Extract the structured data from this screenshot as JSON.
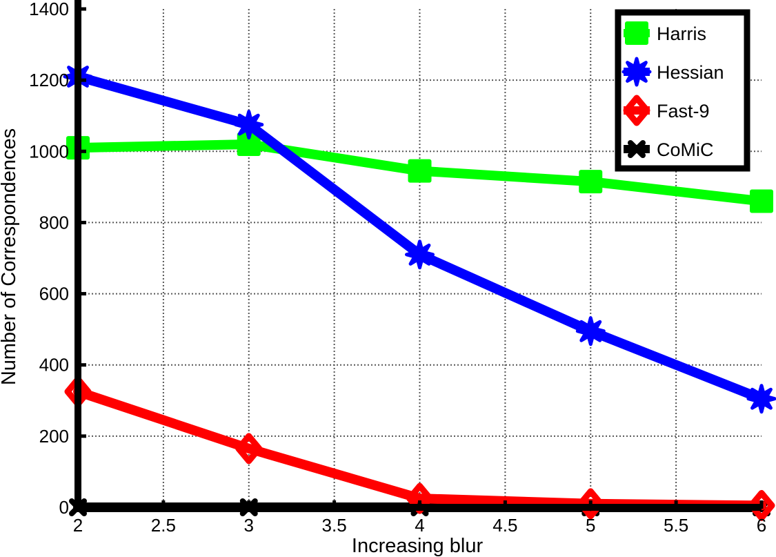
{
  "chart_data": {
    "type": "line",
    "title": "",
    "xlabel": "Increasing blur",
    "ylabel": "Number of Correspondences",
    "x": [
      2,
      3,
      4,
      5,
      6
    ],
    "xlim": [
      2,
      6
    ],
    "ylim": [
      0,
      1400
    ],
    "xticks": [
      "2",
      "2.5",
      "3",
      "3.5",
      "4",
      "4.5",
      "5",
      "5.5",
      "6"
    ],
    "yticks": [
      "0",
      "200",
      "400",
      "600",
      "800",
      "1000",
      "1200",
      "1400"
    ],
    "grid": true,
    "legend_position": "top-right",
    "series": [
      {
        "name": "Harris",
        "color": "#00ff00",
        "marker": "square",
        "values": [
          1010,
          1020,
          945,
          915,
          860
        ]
      },
      {
        "name": "Hessian",
        "color": "#0000ff",
        "marker": "star",
        "values": [
          1210,
          1075,
          710,
          495,
          305
        ]
      },
      {
        "name": "Fast-9",
        "color": "#ff0000",
        "marker": "diamond",
        "values": [
          325,
          165,
          25,
          10,
          5
        ]
      },
      {
        "name": "CoMiC",
        "color": "#000000",
        "marker": "x",
        "values": [
          0,
          0,
          0,
          0,
          0
        ]
      }
    ]
  }
}
